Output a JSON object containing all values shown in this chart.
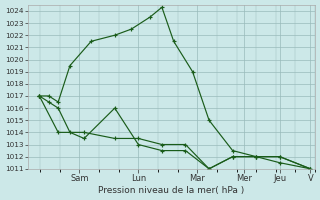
{
  "xlabel": "Pression niveau de la mer( hPa )",
  "ylim": [
    1011,
    1024.5
  ],
  "xlim": [
    -0.2,
    12.0
  ],
  "yticks": [
    1011,
    1012,
    1013,
    1014,
    1015,
    1016,
    1017,
    1018,
    1019,
    1020,
    1021,
    1022,
    1023,
    1024
  ],
  "day_labels": [
    "Sam",
    "Lun",
    "Mar",
    "Mer",
    "Jeu",
    "V"
  ],
  "day_positions": [
    2.0,
    4.5,
    7.0,
    9.0,
    10.5,
    11.8
  ],
  "background_color": "#cce8e8",
  "grid_color": "#99bbbb",
  "line_color": "#1a5c1a",
  "series": [
    {
      "x": [
        0.3,
        0.7,
        1.1,
        1.6,
        2.5,
        3.5,
        4.2,
        5.0,
        5.5,
        6.0,
        6.8,
        7.5,
        8.5,
        9.5,
        10.5,
        11.8
      ],
      "y": [
        1017.0,
        1017.0,
        1016.5,
        1019.5,
        1021.5,
        1022.0,
        1022.5,
        1023.5,
        1024.3,
        1021.5,
        1019.0,
        1015.0,
        1012.5,
        1012.0,
        1012.0,
        1011.0
      ]
    },
    {
      "x": [
        0.3,
        0.7,
        1.1,
        1.6,
        2.2,
        3.5,
        4.5,
        5.5,
        6.5,
        7.5,
        8.5,
        9.5,
        10.5,
        11.8
      ],
      "y": [
        1017.0,
        1016.5,
        1016.0,
        1014.0,
        1013.5,
        1016.0,
        1013.0,
        1012.5,
        1012.5,
        1011.0,
        1012.0,
        1012.0,
        1011.5,
        1011.0
      ]
    },
    {
      "x": [
        0.3,
        1.1,
        2.2,
        3.5,
        4.5,
        5.5,
        6.5,
        7.5,
        8.5,
        9.5,
        10.5,
        11.8
      ],
      "y": [
        1017.0,
        1014.0,
        1014.0,
        1013.5,
        1013.5,
        1013.0,
        1013.0,
        1011.0,
        1012.0,
        1012.0,
        1012.0,
        1011.0
      ]
    }
  ],
  "figsize": [
    3.2,
    2.0
  ],
  "dpi": 100
}
